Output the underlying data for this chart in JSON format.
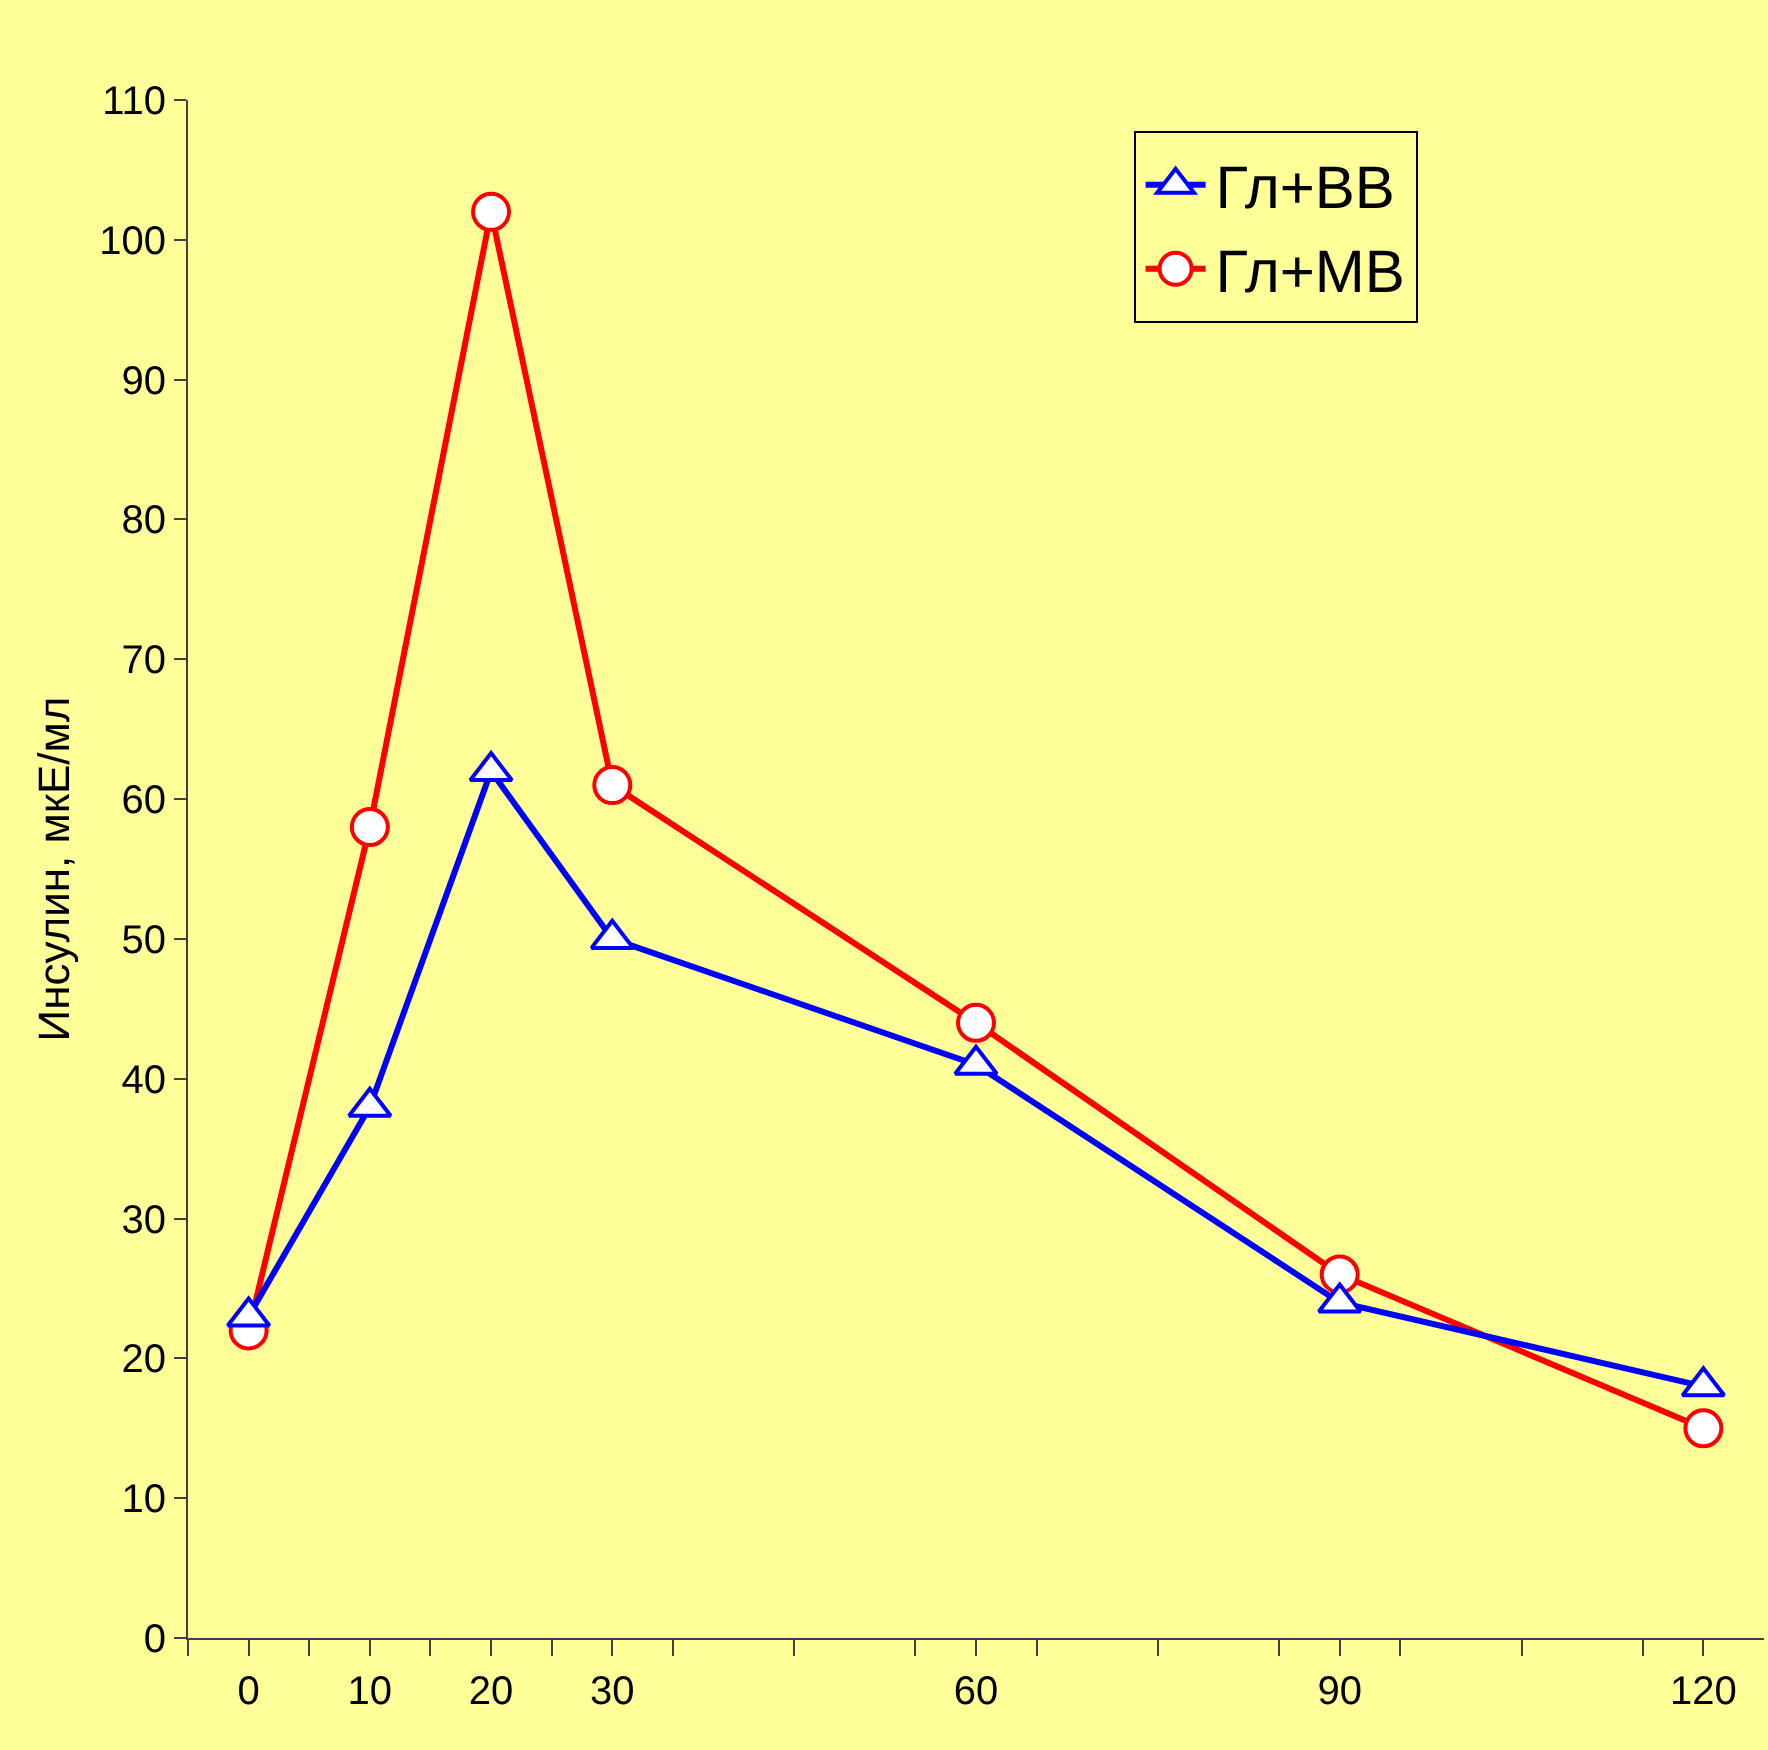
{
  "chart_data": {
    "type": "line",
    "ylabel": "Инсулин, мкЕ/мл",
    "x": [
      0,
      10,
      20,
      30,
      60,
      90,
      120
    ],
    "series": [
      {
        "name": "Гл+ВВ",
        "color": "#0000ff",
        "marker": "triangle",
        "values": [
          23,
          38,
          62,
          50,
          41,
          24,
          18
        ]
      },
      {
        "name": "Гл+МВ",
        "color": "#ff0000",
        "marker": "circle",
        "values": [
          22,
          58,
          102,
          61,
          44,
          26,
          15
        ]
      }
    ],
    "xlim": [
      -5,
      125
    ],
    "xticks": [
      0,
      10,
      20,
      30,
      60,
      90,
      120,
      {
        "value": -5,
        "label": null
      },
      {
        "value": 5,
        "label": null
      },
      {
        "value": 15,
        "label": null
      },
      {
        "value": 25,
        "label": null
      },
      {
        "value": 35,
        "label": null
      },
      {
        "value": 45,
        "label": null
      },
      {
        "value": 55,
        "label": null
      },
      {
        "value": 65,
        "label": null
      },
      {
        "value": 75,
        "label": null
      },
      {
        "value": 85,
        "label": null
      },
      {
        "value": 95,
        "label": null
      },
      {
        "value": 105,
        "label": null
      },
      {
        "value": 115,
        "label": null
      }
    ],
    "ylim": [
      0,
      110
    ],
    "yticks": [
      0,
      10,
      20,
      30,
      40,
      50,
      60,
      70,
      80,
      90,
      100,
      110
    ],
    "grid": false,
    "legend": "top right",
    "line_style": "solid"
  }
}
